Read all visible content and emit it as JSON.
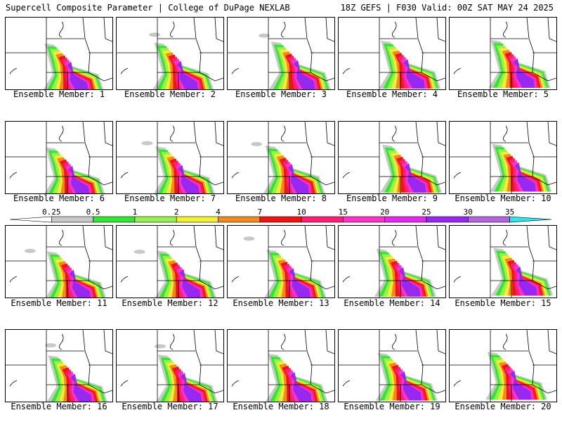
{
  "header": {
    "left": "Supercell Composite Parameter | College of DuPage NEXLAB",
    "right": "18Z GEFS | F030 Valid: 00Z SAT MAY 24 2025"
  },
  "member_prefix": "Ensemble Member: ",
  "members": [
    "1",
    "2",
    "3",
    "4",
    "5",
    "6",
    "7",
    "8",
    "9",
    "10",
    "11",
    "12",
    "13",
    "14",
    "15",
    "16",
    "17",
    "18",
    "19",
    "20"
  ],
  "colorbar": {
    "ticks": [
      "0.25",
      "0.5",
      "1",
      "2",
      "4",
      "7",
      "10",
      "15",
      "20",
      "25",
      "30",
      "35"
    ],
    "colors": [
      "#ffffff",
      "#c8c8c8",
      "#32e632",
      "#96f050",
      "#f0f032",
      "#f08c1e",
      "#f01414",
      "#ff1e78",
      "#ff32c8",
      "#e628f0",
      "#9628f0",
      "#b464dc",
      "#32e6f0"
    ]
  },
  "colors": {
    "light_gray": "#c8c8c8",
    "green": "#32e632",
    "light_green": "#96f050",
    "yellow": "#f0f032",
    "orange": "#f08c1e",
    "red": "#f01414",
    "pink": "#ff1e78",
    "magenta": "#ff32c8",
    "purple": "#9628f0"
  }
}
